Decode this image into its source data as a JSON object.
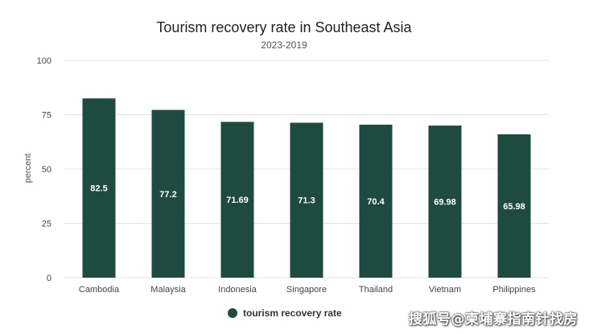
{
  "chart_data": {
    "type": "bar",
    "title": "Tourism recovery rate in Southeast Asia",
    "subtitle": "2023-2019",
    "xlabel": "",
    "ylabel": "percent",
    "ylim": [
      0,
      100
    ],
    "yticks": [
      0,
      25,
      50,
      75,
      100
    ],
    "grid": true,
    "legend_position": "bottom",
    "categories": [
      "Cambodia",
      "Malaysia",
      "Indonesia",
      "Singapore",
      "Thailand",
      "Vietnam",
      "Philippines"
    ],
    "series": [
      {
        "name": "tourism recovery rate",
        "color": "#1f4a3f",
        "values": [
          82.5,
          77.2,
          71.69,
          71.3,
          70.4,
          69.98,
          65.98
        ]
      }
    ]
  },
  "watermark": "搜狐号@柬埔寨指南针找房"
}
